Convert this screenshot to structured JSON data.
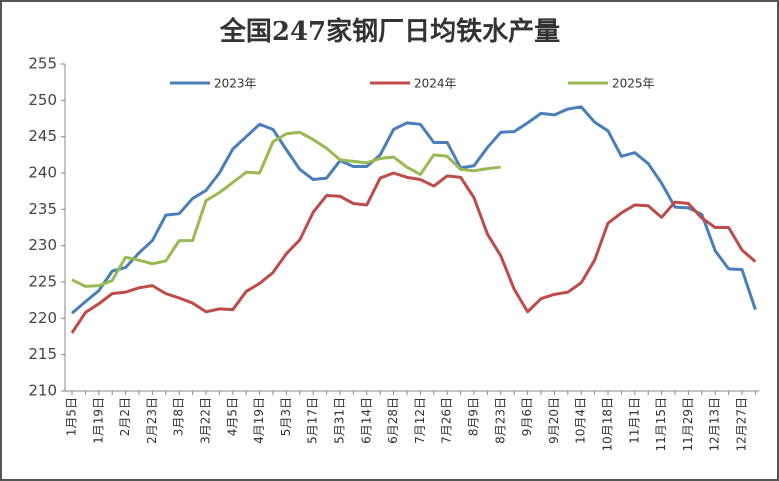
{
  "chart_data": {
    "type": "line",
    "title": "全国247家钢厂日均铁水产量",
    "categories": [
      "1月5日",
      null,
      "1月19日",
      null,
      "2月2日",
      null,
      "2月23日",
      null,
      "3月8日",
      null,
      "3月22日",
      null,
      "4月5日",
      null,
      "4月19日",
      null,
      "5月3日",
      null,
      "5月17日",
      null,
      "5月31日",
      null,
      "6月14日",
      null,
      "6月28日",
      null,
      "7月12日",
      null,
      "7月26日",
      null,
      "8月9日",
      null,
      "8月23日",
      null,
      "9月6日",
      null,
      "9月20日",
      null,
      "10月4日",
      null,
      "10月18日",
      null,
      "11月1日",
      null,
      "11月15日",
      null,
      "11月29日",
      null,
      "12月13日",
      null,
      "12月27日",
      null
    ],
    "series": [
      {
        "name": "2023年",
        "color": "#4a7ebb",
        "values": [
          220.7,
          222.3,
          223.8,
          226.5,
          227.0,
          229.0,
          230.7,
          234.2,
          234.4,
          236.5,
          237.6,
          240.0,
          243.3,
          245.0,
          246.7,
          246.0,
          243.2,
          240.5,
          239.1,
          239.3,
          241.7,
          240.9,
          240.9,
          242.5,
          246.0,
          246.9,
          246.7,
          244.2,
          244.2,
          240.7,
          241.0,
          243.5,
          245.6,
          245.7,
          246.9,
          248.2,
          248.0,
          248.8,
          249.1,
          247.0,
          245.8,
          242.3,
          242.8,
          241.3,
          238.6,
          235.3,
          235.2,
          234.3,
          229.3,
          226.8,
          226.7,
          221.2
        ]
      },
      {
        "name": "2024年",
        "color": "#be4b48",
        "values": [
          218.0,
          220.8,
          222.0,
          223.4,
          223.6,
          224.2,
          224.5,
          223.4,
          222.8,
          222.1,
          220.9,
          221.3,
          221.2,
          223.7,
          224.8,
          226.3,
          228.9,
          230.8,
          234.6,
          236.9,
          236.8,
          235.8,
          235.6,
          239.3,
          240.0,
          239.4,
          239.1,
          238.2,
          239.6,
          239.4,
          236.6,
          231.6,
          228.6,
          224.0,
          220.9,
          222.7,
          223.3,
          223.6,
          224.9,
          228.0,
          233.1,
          234.5,
          235.6,
          235.5,
          233.9,
          236.0,
          235.8,
          233.8,
          232.5,
          232.5,
          229.4,
          227.8
        ]
      },
      {
        "name": "2025年",
        "color": "#98b954",
        "values": [
          225.3,
          224.4,
          224.5,
          225.2,
          228.4,
          228.0,
          227.5,
          227.9,
          230.7,
          230.7,
          236.2,
          237.3,
          238.7,
          240.1,
          240.0,
          244.3,
          245.4,
          245.6,
          244.6,
          243.4,
          241.8,
          241.6,
          241.4,
          242.0,
          242.2,
          240.8,
          239.8,
          242.5,
          242.3,
          240.5,
          240.3,
          240.6,
          240.8,
          null,
          null,
          null,
          null,
          null,
          null,
          null,
          null,
          null,
          null,
          null,
          null,
          null,
          null,
          null,
          null,
          null,
          null,
          null
        ]
      }
    ],
    "ylim": [
      210,
      255
    ],
    "yticks": [
      210,
      215,
      220,
      225,
      230,
      235,
      240,
      245,
      250,
      255
    ],
    "legend": "top"
  }
}
